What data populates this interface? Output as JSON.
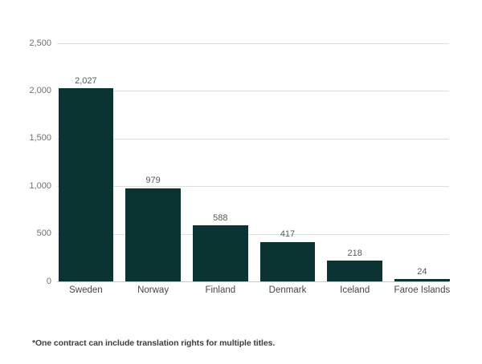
{
  "chart_data": {
    "type": "bar",
    "title": "",
    "xlabel": "",
    "ylabel": "",
    "categories": [
      "Sweden",
      "Norway",
      "Finland",
      "Denmark",
      "Iceland",
      "Faroe Islands"
    ],
    "values": [
      2027,
      979,
      588,
      417,
      218,
      24
    ],
    "value_labels": [
      "2,027",
      "979",
      "588",
      "417",
      "218",
      "24"
    ],
    "ylim": [
      0,
      2500
    ],
    "ytick_values": [
      0,
      500,
      1000,
      1500,
      2000,
      2500
    ],
    "ytick_labels": [
      "0",
      "500",
      "1,000",
      "1,500",
      "2,000",
      "2,500"
    ],
    "grid": "horizontal gridlines, no vertical gridlines",
    "legend": "none",
    "bar_color": "#0a3431"
  },
  "footnote": "*One contract can include translation rights for multiple titles.",
  "colors": {
    "background": "#ffffff",
    "bar": "#0a3431",
    "gridline": "#dedede",
    "axis_line": "#c9c9c9",
    "tick_label": "#6e6e6e",
    "value_label": "#595959",
    "category_label": "#474747",
    "footnote": "#3e3e3e"
  }
}
